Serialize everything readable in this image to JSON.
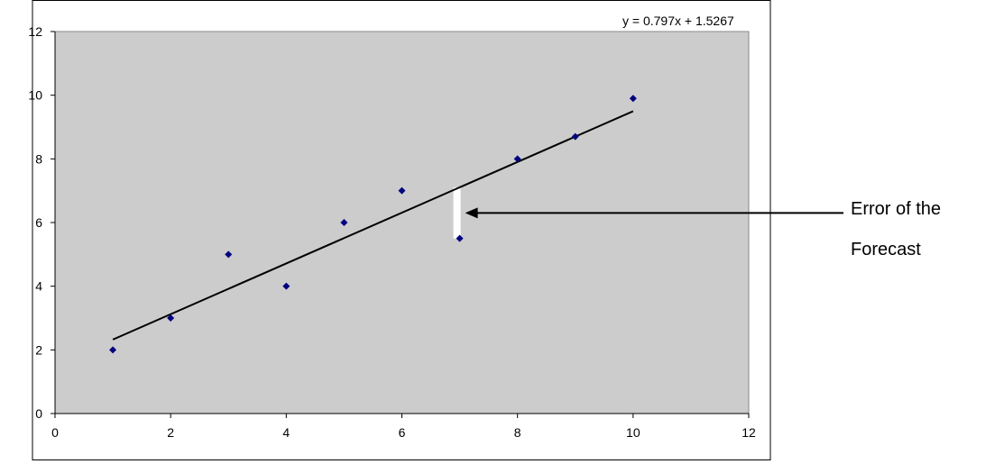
{
  "chart_data": {
    "type": "scatter",
    "title": "",
    "xlabel": "",
    "ylabel": "",
    "xlim": [
      0,
      12
    ],
    "ylim": [
      0,
      12
    ],
    "x_ticks": [
      0,
      2,
      4,
      6,
      8,
      10,
      12
    ],
    "y_ticks": [
      0,
      2,
      4,
      6,
      8,
      10,
      12
    ],
    "grid": false,
    "legend": false,
    "series": [
      {
        "x": [
          1,
          2,
          3,
          4,
          5,
          6,
          7,
          8,
          9,
          10
        ],
        "y": [
          2,
          3,
          5,
          4,
          6,
          7,
          5.5,
          8,
          8.7,
          9.9
        ],
        "marker": "diamond",
        "color": "#000080"
      }
    ],
    "trendline": {
      "type": "linear",
      "slope": 0.797,
      "intercept": 1.5267,
      "x_range": [
        1,
        10
      ],
      "equation_label": "y = 0.797x + 1.5267",
      "color": "#000000"
    },
    "error_highlight": {
      "x": 7,
      "y_from": 5.5,
      "y_to": 7.1,
      "color": "#ffffff"
    },
    "annotation": {
      "line1": "Error of the",
      "line2": "Forecast",
      "points_to_x": 7,
      "points_to_y": 6.3
    },
    "plot_background": "#cccccc"
  }
}
